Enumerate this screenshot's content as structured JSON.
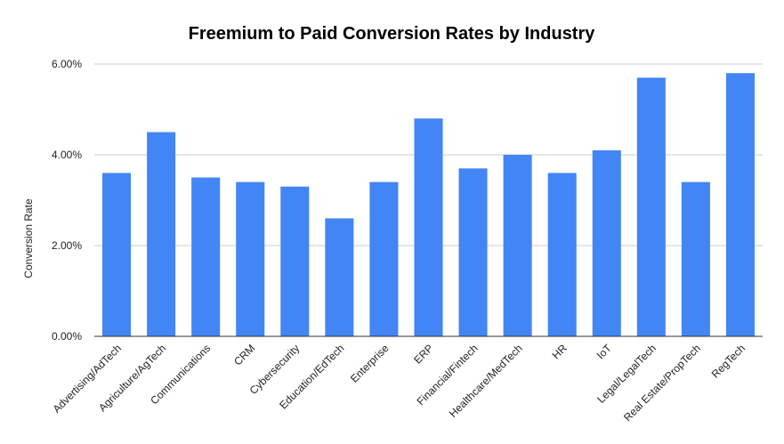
{
  "chart_data": {
    "type": "bar",
    "title": "Freemium to Paid Conversion Rates by Industry",
    "xlabel": "",
    "ylabel": "Conversion Rate",
    "categories": [
      "Advertising/AdTech",
      "Agriculture/AgTech",
      "Communications",
      "CRM",
      "Cybersecurity",
      "Education/EdTech",
      "Enterprise",
      "ERP",
      "Financial/Fintech",
      "Healthcare/MedTech",
      "HR",
      "IoT",
      "Legal/LegalTech",
      "Real Estate/PropTech",
      "RegTech"
    ],
    "values": [
      3.6,
      4.5,
      3.5,
      3.4,
      3.3,
      2.6,
      3.4,
      4.8,
      3.7,
      4.0,
      3.6,
      4.1,
      5.7,
      3.4,
      5.8
    ],
    "ylim": [
      0,
      6
    ],
    "yticks": [
      0,
      2,
      4,
      6
    ],
    "ytick_labels": [
      "0.00%",
      "2.00%",
      "4.00%",
      "6.00%"
    ],
    "grid": true,
    "bar_color": "#4285f4"
  }
}
